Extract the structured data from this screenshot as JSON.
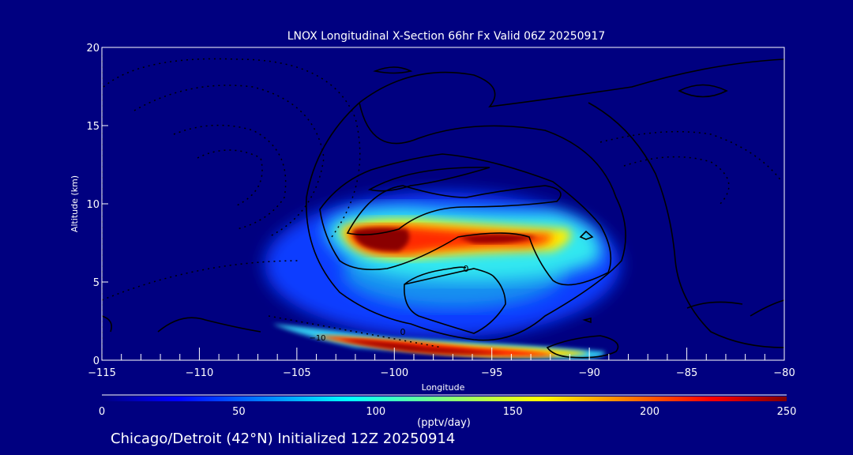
{
  "chart_data": {
    "type": "heatmap",
    "title": "LNOX Longitudinal X-Section 66hr  Fx Valid 06Z 20250917",
    "xlabel": "Longitude",
    "ylabel": "Altitude (km)",
    "xlim": [
      -115,
      -80
    ],
    "ylim": [
      0,
      20
    ],
    "xticks": [
      -115,
      -110,
      -105,
      -100,
      -95,
      -90,
      -85,
      -80
    ],
    "xtick_labels": [
      "−115",
      "−110",
      "−105",
      "−100",
      "−95",
      "−90",
      "−85",
      "−80"
    ],
    "yticks": [
      0,
      5,
      10,
      15,
      20
    ],
    "ytick_labels": [
      "0",
      "5",
      "10",
      "15",
      "20"
    ],
    "colorbar": {
      "ticks": [
        0,
        50,
        100,
        150,
        200,
        250
      ],
      "tick_labels": [
        "0",
        "50",
        "100",
        "150",
        "200",
        "250"
      ],
      "units": "(pptv/day)",
      "range": [
        0,
        250
      ],
      "colormap": "jet"
    },
    "contour_labels": [
      "0",
      "0",
      "−10"
    ],
    "maxima": [
      {
        "lon": -101,
        "alt_km": 7.5,
        "value": 250
      },
      {
        "lon": -94.5,
        "alt_km": 7.8,
        "value": 240
      },
      {
        "lon": -99,
        "alt_km": 1.0,
        "value": 250
      }
    ],
    "grid": false
  },
  "footer": "Chicago/Detroit (42°N) Initialized 12Z 20250914",
  "colors": {
    "background": "#000080",
    "text": "#ffffff",
    "contour": "#000000"
  }
}
